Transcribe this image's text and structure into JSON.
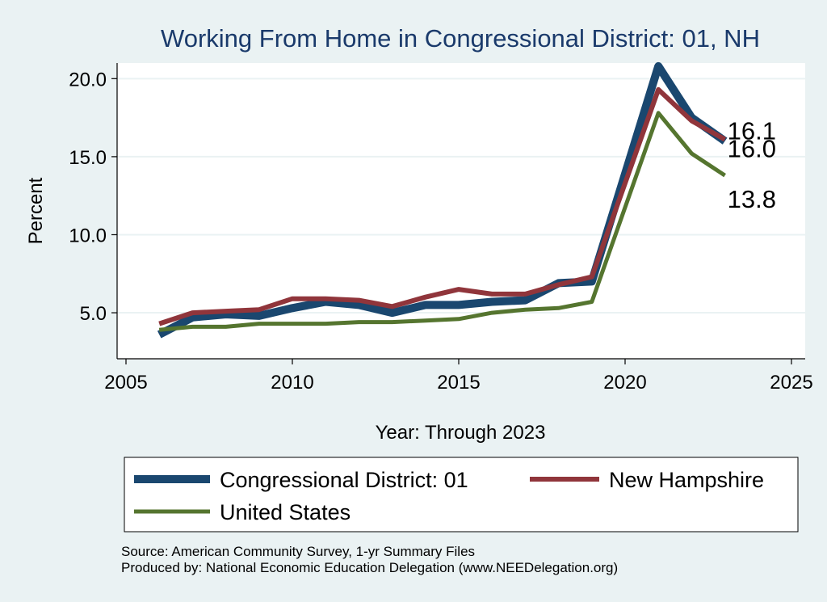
{
  "chart_data": {
    "type": "line",
    "title": "Working From Home in Congressional District: 01, NH",
    "xlabel": "Year: Through 2023",
    "ylabel": "Percent",
    "xlim": [
      2005,
      2025
    ],
    "ylim": [
      2.0,
      21.0
    ],
    "xticks": [
      2005,
      2010,
      2015,
      2020,
      2025
    ],
    "yticks": [
      5.0,
      10.0,
      15.0,
      20.0
    ],
    "xtick_labels": [
      "2005",
      "2010",
      "2015",
      "2020",
      "2025"
    ],
    "ytick_labels": [
      "5.0",
      "10.0",
      "15.0",
      "20.0"
    ],
    "grid": "horizontal",
    "legend_position": "bottom",
    "x": [
      2006,
      2007,
      2008,
      2009,
      2010,
      2011,
      2012,
      2013,
      2014,
      2015,
      2016,
      2017,
      2018,
      2019,
      2021,
      2022,
      2023
    ],
    "series": [
      {
        "name": "Congressional District: 01",
        "color": "#1a476f",
        "values": [
          3.6,
          4.7,
          4.9,
          4.8,
          5.3,
          5.7,
          5.5,
          5.0,
          5.5,
          5.5,
          5.7,
          5.8,
          6.9,
          7.0,
          20.8,
          17.5,
          16.0
        ],
        "end_label": "16.0"
      },
      {
        "name": "New Hampshire",
        "color": "#90353b",
        "values": [
          4.3,
          5.0,
          5.1,
          5.2,
          5.9,
          5.9,
          5.8,
          5.4,
          6.0,
          6.5,
          6.2,
          6.2,
          6.8,
          7.3,
          19.3,
          17.3,
          16.1
        ],
        "end_label": "16.1"
      },
      {
        "name": "United States",
        "color": "#55752f",
        "values": [
          3.9,
          4.1,
          4.1,
          4.3,
          4.3,
          4.3,
          4.4,
          4.4,
          4.5,
          4.6,
          5.0,
          5.2,
          5.3,
          5.7,
          17.8,
          15.2,
          13.8
        ],
        "end_label": "13.8"
      }
    ],
    "notes": [
      "Source: American Community Survey, 1-yr Summary Files",
      "Produced by: National Economic Education Delegation (www.NEEDelegation.org)"
    ]
  }
}
